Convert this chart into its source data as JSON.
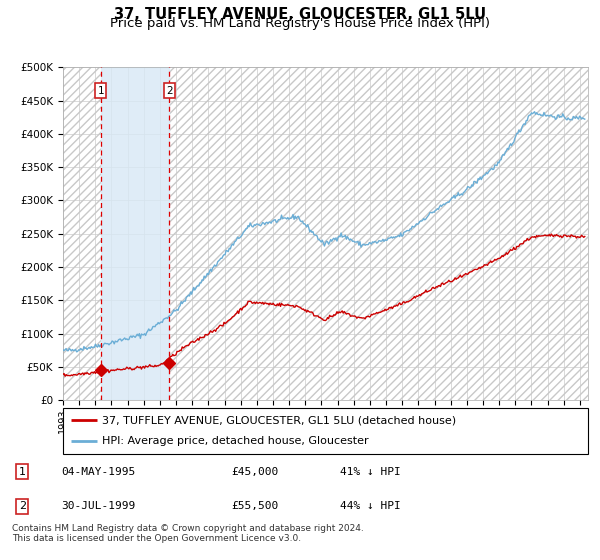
{
  "title": "37, TUFFLEY AVENUE, GLOUCESTER, GL1 5LU",
  "subtitle": "Price paid vs. HM Land Registry's House Price Index (HPI)",
  "ylim": [
    0,
    500000
  ],
  "yticks": [
    0,
    50000,
    100000,
    150000,
    200000,
    250000,
    300000,
    350000,
    400000,
    450000,
    500000
  ],
  "ytick_labels": [
    "£0",
    "£50K",
    "£100K",
    "£150K",
    "£200K",
    "£250K",
    "£300K",
    "£350K",
    "£400K",
    "£450K",
    "£500K"
  ],
  "hpi_color": "#6baed6",
  "price_color": "#cc0000",
  "marker_color": "#cc0000",
  "vline_color": "#dd0000",
  "shade_color": "#d8e8f5",
  "background_color": "#ffffff",
  "grid_color": "#cccccc",
  "sale1_date": 1995.34,
  "sale1_price": 45000,
  "sale2_date": 1999.58,
  "sale2_price": 55500,
  "xmin": 1993.0,
  "xmax": 2025.5,
  "legend_line1": "37, TUFFLEY AVENUE, GLOUCESTER, GL1 5LU (detached house)",
  "legend_line2": "HPI: Average price, detached house, Gloucester",
  "table_row1": [
    "1",
    "04-MAY-1995",
    "£45,000",
    "41% ↓ HPI"
  ],
  "table_row2": [
    "2",
    "30-JUL-1999",
    "£55,500",
    "44% ↓ HPI"
  ],
  "footer": "Contains HM Land Registry data © Crown copyright and database right 2024.\nThis data is licensed under the Open Government Licence v3.0.",
  "title_fontsize": 10.5,
  "subtitle_fontsize": 9.5,
  "tick_fontsize": 7.5,
  "legend_fontsize": 8,
  "table_fontsize": 8,
  "footer_fontsize": 6.5
}
